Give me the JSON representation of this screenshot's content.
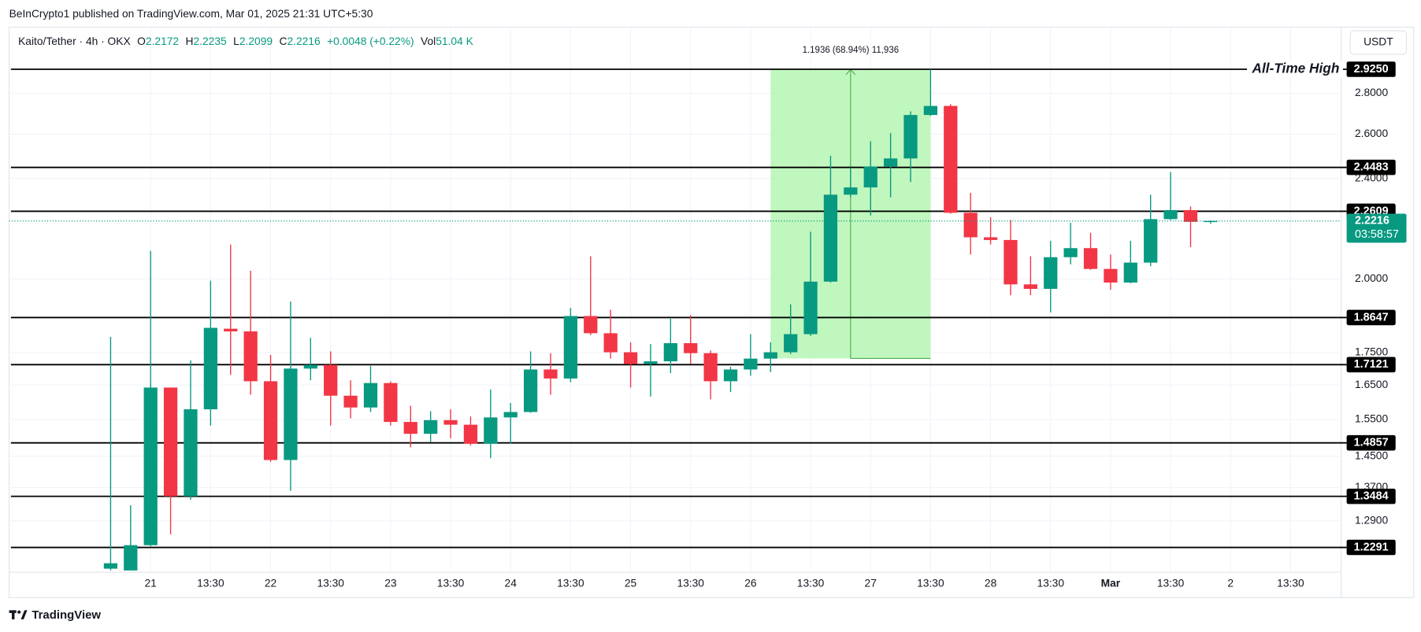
{
  "header": {
    "publisher": "BeInCrypto1 published on TradingView.com, Mar 01, 2025 21:31 UTC+5:30",
    "brand": "TradingView"
  },
  "chart_data": {
    "type": "candlestick",
    "symbol": "Kaito/Tether · 4h · OKX",
    "legend_labels": {
      "open": "O",
      "high": "H",
      "low": "L",
      "close": "C",
      "volume": "Vol"
    },
    "change": "+0.0048 (+0.22%)",
    "volume": "51.04 K",
    "currency": "USDT",
    "countdown": "03:58:57",
    "up_color": "#089981",
    "down_color": "#f23645",
    "log_scale": true,
    "grid": true,
    "categories": [
      null,
      null,
      "21",
      null,
      null,
      "13:30",
      null,
      null,
      "22",
      null,
      null,
      "13:30",
      null,
      null,
      "23",
      null,
      null,
      "13:30",
      null,
      null,
      "24",
      null,
      null,
      "13:30",
      null,
      null,
      "25",
      null,
      null,
      "13:30",
      null,
      null,
      "26",
      null,
      null,
      "13:30",
      null,
      null,
      "27",
      null,
      null,
      "13:30",
      null,
      null,
      "28",
      null,
      null,
      "13:30",
      null,
      null,
      "Mar",
      null,
      null,
      "13:30",
      null,
      null,
      "2",
      null,
      null,
      "13:30"
    ],
    "open": [
      1.1826,
      1.1788,
      1.2341,
      1.6424,
      1.3486,
      1.5789,
      1.8273,
      1.8184,
      1.6613,
      1.4402,
      1.6999,
      1.7111,
      1.6183,
      1.5841,
      1.6559,
      1.5431,
      1.5103,
      1.5481,
      1.5354,
      1.4833,
      1.5558,
      1.5711,
      1.6971,
      1.6696,
      1.8698,
      1.8124,
      1.751,
      1.7138,
      1.7224,
      1.78,
      1.7481,
      1.6613,
      1.6971,
      1.7309,
      1.751,
      1.8094,
      1.9902,
      2.33,
      2.3609,
      2.452,
      2.4882,
      2.6922,
      2.7368,
      2.2548,
      2.1568,
      2.1463,
      1.9803,
      1.9643,
      2.0804,
      2.1148,
      2.0365,
      1.9869,
      2.06,
      2.229,
      2.2658,
      2.2172,
      null,
      null,
      null,
      null
    ],
    "high": [
      1.8005,
      1.3267,
      2.1044,
      1.6424,
      1.7253,
      1.9934,
      2.1288,
      2.0298,
      1.7424,
      1.9196,
      1.7975,
      1.7538,
      1.6641,
      1.7083,
      1.6613,
      1.5893,
      1.5737,
      1.5789,
      1.5583,
      1.637,
      1.5971,
      1.7538,
      1.7481,
      1.8977,
      2.0839,
      1.8914,
      1.7829,
      1.7771,
      1.8606,
      1.8728,
      1.7567,
      1.7055,
      1.8094,
      1.7829,
      1.9101,
      2.1783,
      2.5004,
      2.4477,
      2.567,
      2.6052,
      2.71,
      2.925,
      2.7458,
      2.3377,
      2.2363,
      2.2253,
      2.0839,
      2.1428,
      2.2144,
      2.1746,
      2.0906,
      2.1428,
      2.33,
      2.4276,
      2.2808,
      2.2235,
      null,
      null,
      null,
      null
    ],
    "low": [
      1.1788,
      1.1788,
      1.232,
      1.2587,
      1.3398,
      1.5329,
      1.6805,
      1.6209,
      1.4355,
      1.362,
      1.6641,
      1.5329,
      1.5533,
      1.5711,
      1.5329,
      1.4737,
      1.4882,
      1.498,
      1.4785,
      1.4449,
      1.4833,
      1.569,
      1.6209,
      1.6586,
      1.8064,
      1.7309,
      1.6424,
      1.6156,
      1.686,
      1.7138,
      1.6077,
      1.6289,
      1.6777,
      1.6888,
      1.7452,
      1.8035,
      1.9869,
      2.3186,
      2.2437,
      2.3186,
      2.3842,
      2.6878,
      2.251,
      2.0906,
      2.1288,
      1.9417,
      1.9417,
      1.882,
      2.0533,
      2.0331,
      1.961,
      1.984,
      2.0465,
      2.2253,
      2.1184,
      2.2099,
      null,
      null,
      null,
      null
    ],
    "close": [
      1.1943,
      1.2341,
      1.6424,
      1.3486,
      1.5789,
      1.8302,
      1.8184,
      1.6613,
      1.4402,
      1.6999,
      1.7111,
      1.6183,
      1.5841,
      1.6559,
      1.5431,
      1.5103,
      1.5481,
      1.5354,
      1.4833,
      1.5558,
      1.5711,
      1.6971,
      1.6696,
      1.8698,
      1.8124,
      1.751,
      1.7138,
      1.7224,
      1.78,
      1.7481,
      1.6613,
      1.6971,
      1.7309,
      1.751,
      1.8094,
      1.9902,
      2.33,
      2.3609,
      2.452,
      2.4882,
      2.6922,
      2.7368,
      2.2548,
      2.1568,
      2.1463,
      1.9803,
      1.9643,
      2.0804,
      2.1148,
      2.0365,
      1.9869,
      2.06,
      2.229,
      2.2658,
      2.218,
      2.2216,
      null,
      null,
      null,
      null
    ],
    "ylim": [
      1.175,
      3.157
    ],
    "yticks": [
      {
        "value": 2.8,
        "label": "2.8000"
      },
      {
        "value": 2.6,
        "label": "2.6000"
      },
      {
        "value": 2.4,
        "label": "2.4000"
      },
      {
        "value": 2.0,
        "label": "2.0000"
      },
      {
        "value": 1.75,
        "label": "1.7500"
      },
      {
        "value": 1.65,
        "label": "1.6500"
      },
      {
        "value": 1.55,
        "label": "1.5500"
      },
      {
        "value": 1.45,
        "label": "1.4500"
      },
      {
        "value": 1.37,
        "label": "1.3700"
      },
      {
        "value": 1.29,
        "label": "1.2900"
      }
    ],
    "levels": [
      {
        "value": 2.925,
        "label": "2.9250",
        "annotation": "All-Time High"
      },
      {
        "value": 2.4483,
        "label": "2.4483"
      },
      {
        "value": 2.2609,
        "label": "2.2609"
      },
      {
        "value": 1.8647,
        "label": "1.8647"
      },
      {
        "value": 1.7121,
        "label": "1.7121"
      },
      {
        "value": 1.4857,
        "label": "1.4857"
      },
      {
        "value": 1.3484,
        "label": "1.3484"
      },
      {
        "value": 1.2291,
        "label": "1.2291"
      }
    ],
    "measure": {
      "label": "1.1936 (68.94%) 11,936",
      "low": 1.7314,
      "high": 2.925,
      "from_index": 33,
      "to_index": 41,
      "fill": "#b9f6b7",
      "stroke": "#4caf50"
    }
  }
}
